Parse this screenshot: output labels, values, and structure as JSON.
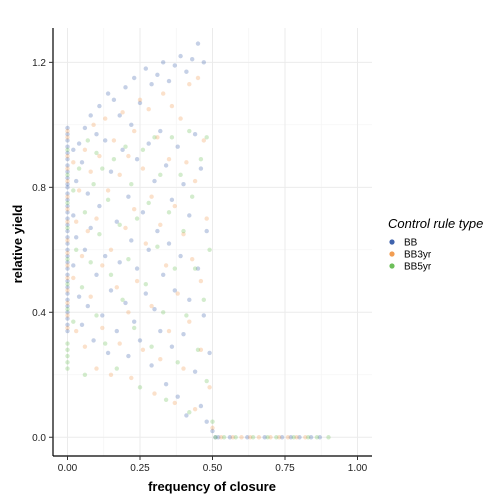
{
  "chart_data": {
    "type": "scatter",
    "xlabel": "frequency of closure",
    "ylabel": "relative yield",
    "xlim": [
      -0.05,
      1.05
    ],
    "ylim": [
      -0.06,
      1.31
    ],
    "x_ticks": [
      0.0,
      0.25,
      0.5,
      0.75,
      1.0
    ],
    "x_tick_labels": [
      "0.00",
      "0.25",
      "0.50",
      "0.75",
      "1.00"
    ],
    "y_ticks": [
      0.0,
      0.4,
      0.8,
      1.2
    ],
    "y_tick_labels": [
      "0.0",
      "0.4",
      "0.8",
      "1.2"
    ],
    "grid": true,
    "legend": {
      "title": "Control rule type",
      "placement": "right",
      "entries": [
        {
          "label": "BB",
          "color": "#3f63ad"
        },
        {
          "label": "BB3yr",
          "color": "#f29d52"
        },
        {
          "label": "BB5yr",
          "color": "#6dbf5a"
        }
      ]
    },
    "point_alpha": 0.3,
    "series": [
      {
        "name": "BB",
        "color": "#3f63ad",
        "points": [
          [
            0.0,
            0.99
          ],
          [
            0.0,
            0.97
          ],
          [
            0.0,
            0.95
          ],
          [
            0.0,
            0.93
          ],
          [
            0.0,
            0.91
          ],
          [
            0.0,
            0.89
          ],
          [
            0.0,
            0.87
          ],
          [
            0.0,
            0.85
          ],
          [
            0.0,
            0.83
          ],
          [
            0.0,
            0.81
          ],
          [
            0.0,
            0.8
          ],
          [
            0.0,
            0.78
          ],
          [
            0.0,
            0.76
          ],
          [
            0.0,
            0.74
          ],
          [
            0.0,
            0.72
          ],
          [
            0.0,
            0.7
          ],
          [
            0.0,
            0.68
          ],
          [
            0.0,
            0.66
          ],
          [
            0.0,
            0.64
          ],
          [
            0.0,
            0.62
          ],
          [
            0.0,
            0.6
          ],
          [
            0.0,
            0.58
          ],
          [
            0.0,
            0.56
          ],
          [
            0.0,
            0.54
          ],
          [
            0.0,
            0.52
          ],
          [
            0.0,
            0.5
          ],
          [
            0.0,
            0.48
          ],
          [
            0.0,
            0.46
          ],
          [
            0.0,
            0.44
          ],
          [
            0.0,
            0.42
          ],
          [
            0.0,
            0.4
          ],
          [
            0.0,
            0.38
          ],
          [
            0.0,
            0.36
          ],
          [
            0.0,
            0.34
          ],
          [
            0.02,
            0.92
          ],
          [
            0.02,
            0.71
          ],
          [
            0.02,
            0.55
          ],
          [
            0.03,
            0.82
          ],
          [
            0.03,
            0.64
          ],
          [
            0.04,
            0.94
          ],
          [
            0.04,
            0.45
          ],
          [
            0.05,
            0.88
          ],
          [
            0.05,
            0.36
          ],
          [
            0.06,
            0.99
          ],
          [
            0.06,
            0.6
          ],
          [
            0.07,
            0.78
          ],
          [
            0.07,
            0.42
          ],
          [
            0.08,
            1.03
          ],
          [
            0.08,
            0.67
          ],
          [
            0.09,
            0.31
          ],
          [
            0.1,
            0.97
          ],
          [
            0.1,
            0.52
          ],
          [
            0.11,
            1.06
          ],
          [
            0.11,
            0.74
          ],
          [
            0.12,
            0.39
          ],
          [
            0.13,
            0.95
          ],
          [
            0.13,
            0.58
          ],
          [
            0.14,
            1.1
          ],
          [
            0.14,
            0.27
          ],
          [
            0.15,
            0.85
          ],
          [
            0.15,
            0.47
          ],
          [
            0.16,
            1.08
          ],
          [
            0.17,
            0.69
          ],
          [
            0.17,
            0.34
          ],
          [
            0.18,
            1.03
          ],
          [
            0.18,
            0.56
          ],
          [
            0.19,
            0.92
          ],
          [
            0.2,
            1.12
          ],
          [
            0.2,
            0.43
          ],
          [
            0.21,
            0.77
          ],
          [
            0.21,
            0.26
          ],
          [
            0.22,
            1.0
          ],
          [
            0.22,
            0.63
          ],
          [
            0.23,
            1.15
          ],
          [
            0.23,
            0.37
          ],
          [
            0.24,
            0.89
          ],
          [
            0.24,
            0.54
          ],
          [
            0.25,
            1.07
          ],
          [
            0.25,
            0.31
          ],
          [
            0.26,
            0.72
          ],
          [
            0.27,
            1.18
          ],
          [
            0.27,
            0.46
          ],
          [
            0.28,
            0.94
          ],
          [
            0.28,
            0.6
          ],
          [
            0.29,
            1.13
          ],
          [
            0.29,
            0.23
          ],
          [
            0.3,
            0.82
          ],
          [
            0.3,
            0.41
          ],
          [
            0.31,
            1.16
          ],
          [
            0.31,
            0.66
          ],
          [
            0.32,
            0.98
          ],
          [
            0.32,
            0.34
          ],
          [
            0.33,
            1.2
          ],
          [
            0.33,
            0.52
          ],
          [
            0.34,
            0.87
          ],
          [
            0.34,
            0.17
          ],
          [
            0.35,
            1.14
          ],
          [
            0.35,
            0.62
          ],
          [
            0.36,
            0.76
          ],
          [
            0.36,
            0.29
          ],
          [
            0.37,
            1.19
          ],
          [
            0.37,
            0.47
          ],
          [
            0.38,
            0.93
          ],
          [
            0.38,
            0.13
          ],
          [
            0.39,
            1.22
          ],
          [
            0.39,
            0.58
          ],
          [
            0.4,
            0.81
          ],
          [
            0.4,
            0.33
          ],
          [
            0.41,
            1.17
          ],
          [
            0.41,
            0.07
          ],
          [
            0.42,
            0.71
          ],
          [
            0.42,
            0.44
          ],
          [
            0.43,
            1.21
          ],
          [
            0.44,
            0.97
          ],
          [
            0.44,
            0.21
          ],
          [
            0.45,
            1.26
          ],
          [
            0.45,
            0.54
          ],
          [
            0.46,
            0.86
          ],
          [
            0.46,
            0.1
          ],
          [
            0.47,
            1.2
          ],
          [
            0.47,
            0.39
          ],
          [
            0.48,
            0.66
          ],
          [
            0.48,
            0.05
          ],
          [
            0.49,
            0.27
          ],
          [
            0.5,
            0.02
          ],
          [
            0.51,
            0.0
          ],
          [
            0.52,
            0.0
          ],
          [
            0.56,
            0.0
          ],
          [
            0.62,
            0.0
          ],
          [
            0.68,
            0.0
          ],
          [
            0.74,
            0.0
          ],
          [
            0.77,
            0.0
          ],
          [
            0.8,
            0.0
          ],
          [
            0.84,
            0.0
          ],
          [
            0.87,
            0.0
          ]
        ]
      },
      {
        "name": "BB3yr",
        "color": "#f29d52",
        "points": [
          [
            0.0,
            0.98
          ],
          [
            0.0,
            0.96
          ],
          [
            0.0,
            0.9
          ],
          [
            0.0,
            0.86
          ],
          [
            0.0,
            0.82
          ],
          [
            0.0,
            0.77
          ],
          [
            0.0,
            0.73
          ],
          [
            0.0,
            0.69
          ],
          [
            0.0,
            0.63
          ],
          [
            0.0,
            0.59
          ],
          [
            0.0,
            0.55
          ],
          [
            0.0,
            0.51
          ],
          [
            0.0,
            0.47
          ],
          [
            0.0,
            0.43
          ],
          [
            0.0,
            0.39
          ],
          [
            0.0,
            0.35
          ],
          [
            0.02,
            0.88
          ],
          [
            0.02,
            0.51
          ],
          [
            0.03,
            0.69
          ],
          [
            0.03,
            0.34
          ],
          [
            0.04,
            0.79
          ],
          [
            0.05,
            0.58
          ],
          [
            0.06,
            0.92
          ],
          [
            0.06,
            0.29
          ],
          [
            0.07,
            0.66
          ],
          [
            0.08,
            0.85
          ],
          [
            0.08,
            0.45
          ],
          [
            0.09,
            1.0
          ],
          [
            0.1,
            0.7
          ],
          [
            0.1,
            0.22
          ],
          [
            0.11,
            0.9
          ],
          [
            0.12,
            0.55
          ],
          [
            0.12,
            0.35
          ],
          [
            0.13,
            1.02
          ],
          [
            0.14,
            0.79
          ],
          [
            0.15,
            0.6
          ],
          [
            0.15,
            0.2
          ],
          [
            0.16,
            0.95
          ],
          [
            0.17,
            0.48
          ],
          [
            0.18,
            0.84
          ],
          [
            0.18,
            0.3
          ],
          [
            0.19,
            1.04
          ],
          [
            0.2,
            0.67
          ],
          [
            0.21,
            0.9
          ],
          [
            0.21,
            0.4
          ],
          [
            0.22,
            0.19
          ],
          [
            0.23,
            0.98
          ],
          [
            0.23,
            0.73
          ],
          [
            0.24,
            0.5
          ],
          [
            0.25,
            1.08
          ],
          [
            0.26,
            0.86
          ],
          [
            0.26,
            0.28
          ],
          [
            0.27,
            0.62
          ],
          [
            0.28,
            1.05
          ],
          [
            0.29,
            0.77
          ],
          [
            0.29,
            0.42
          ],
          [
            0.3,
            0.14
          ],
          [
            0.31,
            0.96
          ],
          [
            0.32,
            0.68
          ],
          [
            0.32,
            0.25
          ],
          [
            0.33,
            1.1
          ],
          [
            0.34,
            0.55
          ],
          [
            0.35,
            0.89
          ],
          [
            0.35,
            0.34
          ],
          [
            0.36,
            1.06
          ],
          [
            0.37,
            0.74
          ],
          [
            0.37,
            0.11
          ],
          [
            0.38,
            0.46
          ],
          [
            0.39,
            1.02
          ],
          [
            0.4,
            0.65
          ],
          [
            0.4,
            0.22
          ],
          [
            0.41,
            0.88
          ],
          [
            0.42,
            1.13
          ],
          [
            0.42,
            0.37
          ],
          [
            0.43,
            0.57
          ],
          [
            0.44,
            0.82
          ],
          [
            0.44,
            0.09
          ],
          [
            0.45,
            1.15
          ],
          [
            0.46,
            0.5
          ],
          [
            0.46,
            0.28
          ],
          [
            0.47,
            0.95
          ],
          [
            0.48,
            0.7
          ],
          [
            0.49,
            0.16
          ],
          [
            0.5,
            0.03
          ],
          [
            0.53,
            0.0
          ],
          [
            0.57,
            0.0
          ],
          [
            0.6,
            0.0
          ],
          [
            0.63,
            0.0
          ],
          [
            0.66,
            0.0
          ],
          [
            0.7,
            0.0
          ],
          [
            0.73,
            0.0
          ],
          [
            0.76,
            0.0
          ],
          [
            0.79,
            0.0
          ],
          [
            0.82,
            0.0
          ]
        ]
      },
      {
        "name": "BB5yr",
        "color": "#6dbf5a",
        "points": [
          [
            0.0,
            0.92
          ],
          [
            0.0,
            0.84
          ],
          [
            0.0,
            0.75
          ],
          [
            0.0,
            0.67
          ],
          [
            0.0,
            0.57
          ],
          [
            0.0,
            0.49
          ],
          [
            0.0,
            0.41
          ],
          [
            0.0,
            0.3
          ],
          [
            0.0,
            0.28
          ],
          [
            0.0,
            0.26
          ],
          [
            0.0,
            0.24
          ],
          [
            0.0,
            0.22
          ],
          [
            0.02,
            0.79
          ],
          [
            0.02,
            0.37
          ],
          [
            0.03,
            0.6
          ],
          [
            0.04,
            0.86
          ],
          [
            0.05,
            0.48
          ],
          [
            0.06,
            0.72
          ],
          [
            0.06,
            0.2
          ],
          [
            0.07,
            0.95
          ],
          [
            0.08,
            0.56
          ],
          [
            0.09,
            0.81
          ],
          [
            0.1,
            0.39
          ],
          [
            0.1,
            0.91
          ],
          [
            0.11,
            0.65
          ],
          [
            0.12,
            0.86
          ],
          [
            0.13,
            0.3
          ],
          [
            0.14,
            0.76
          ],
          [
            0.15,
            0.52
          ],
          [
            0.16,
            0.89
          ],
          [
            0.17,
            0.22
          ],
          [
            0.18,
            0.68
          ],
          [
            0.19,
            0.44
          ],
          [
            0.2,
            0.93
          ],
          [
            0.21,
            0.57
          ],
          [
            0.22,
            0.81
          ],
          [
            0.23,
            0.35
          ],
          [
            0.24,
            0.7
          ],
          [
            0.25,
            0.16
          ],
          [
            0.26,
            0.92
          ],
          [
            0.27,
            0.49
          ],
          [
            0.28,
            0.75
          ],
          [
            0.29,
            0.29
          ],
          [
            0.3,
            0.96
          ],
          [
            0.31,
            0.61
          ],
          [
            0.32,
            0.84
          ],
          [
            0.33,
            0.4
          ],
          [
            0.34,
            0.12
          ],
          [
            0.35,
            0.72
          ],
          [
            0.36,
            0.96
          ],
          [
            0.37,
            0.54
          ],
          [
            0.38,
            0.24
          ],
          [
            0.39,
            0.84
          ],
          [
            0.4,
            0.66
          ],
          [
            0.41,
            0.39
          ],
          [
            0.42,
            0.98
          ],
          [
            0.42,
            0.08
          ],
          [
            0.43,
            0.77
          ],
          [
            0.44,
            0.54
          ],
          [
            0.45,
            0.28
          ],
          [
            0.46,
            0.89
          ],
          [
            0.47,
            0.44
          ],
          [
            0.48,
            0.96
          ],
          [
            0.48,
            0.18
          ],
          [
            0.49,
            0.6
          ],
          [
            0.5,
            0.05
          ],
          [
            0.51,
            0.0
          ],
          [
            0.54,
            0.0
          ],
          [
            0.58,
            0.0
          ],
          [
            0.64,
            0.0
          ],
          [
            0.69,
            0.0
          ],
          [
            0.72,
            0.0
          ],
          [
            0.78,
            0.0
          ],
          [
            0.83,
            0.0
          ],
          [
            0.86,
            0.0
          ],
          [
            0.9,
            0.0
          ]
        ]
      }
    ]
  }
}
